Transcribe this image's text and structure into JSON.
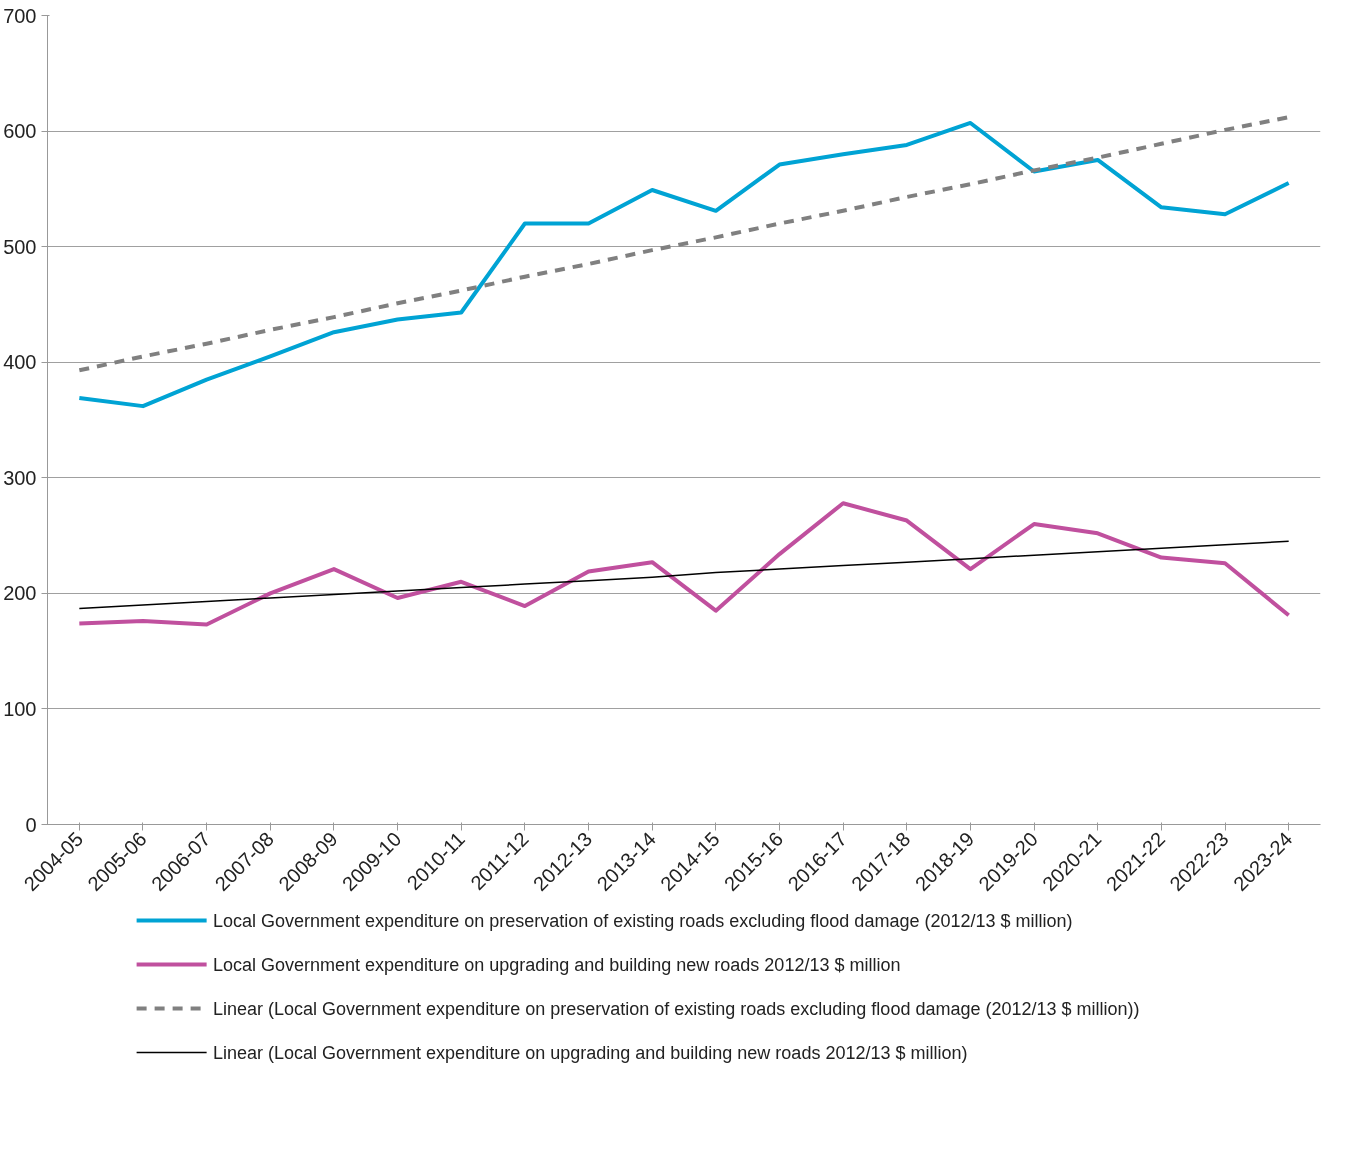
{
  "chart_data": {
    "type": "line",
    "categories": [
      "2004-05",
      "2005-06",
      "2006-07",
      "2007-08",
      "2008-09",
      "2009-10",
      "2010-11",
      "2011-12",
      "2012-13",
      "2013-14",
      "2014-15",
      "2015-16",
      "2016-17",
      "2017-18",
      "2018-19",
      "2019-20",
      "2020-21",
      "2021-22",
      "2022-23",
      "2023-24"
    ],
    "series": [
      {
        "name": "Local Government expenditure on preservation of existing roads excluding flood damage (2012/13 $ million)",
        "color": "#00a3d4",
        "values": [
          369,
          362,
          385,
          405,
          426,
          437,
          443,
          520,
          520,
          549,
          531,
          571,
          580,
          588,
          607,
          565,
          575,
          534,
          528,
          555
        ]
      },
      {
        "name": "Local Government expenditure on upgrading and building new roads 2012/13 $ million",
        "color": "#c0509e",
        "values": [
          174,
          176,
          173,
          200,
          221,
          196,
          210,
          189,
          219,
          227,
          185,
          234,
          278,
          263,
          221,
          260,
          252,
          231,
          226,
          181
        ]
      },
      {
        "name": "Linear (Local Government expenditure on preservation of existing roads excluding flood damage (2012/13 $ million))",
        "color": "#808080",
        "line_style": "dashed",
        "values": [
          393,
          405,
          416,
          428,
          439,
          451,
          462,
          474,
          485,
          497,
          508,
          520,
          531,
          543,
          554,
          566,
          577,
          589,
          601,
          612
        ]
      },
      {
        "name": "Linear (Local Government expenditure on upgrading and building new roads 2012/13 $ million)",
        "color": "#000000",
        "line_style": "solid",
        "values": [
          187,
          190,
          193,
          196,
          199,
          202,
          205,
          208,
          211,
          214,
          218,
          221,
          224,
          227,
          230,
          233,
          236,
          239,
          242,
          245
        ]
      }
    ],
    "ylim": [
      0,
      700
    ],
    "yticks": [
      0,
      100,
      200,
      300,
      400,
      500,
      600,
      700
    ],
    "grid": "y",
    "legend": "bottom",
    "marker": "none",
    "line_style": "solid"
  }
}
